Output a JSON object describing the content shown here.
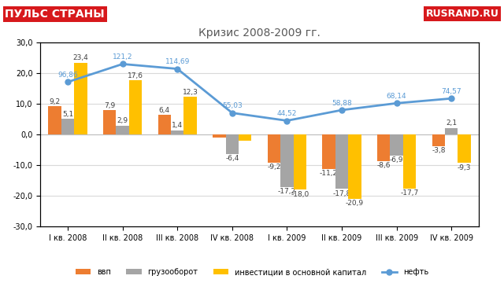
{
  "chart_data": {
    "type": "bar",
    "title": "Кризис 2008-2009 гг.",
    "annotations": [
      "ПУЛЬС СТРАНЫ",
      "RUSRAND.RU"
    ],
    "categories": [
      "I кв. 2008",
      "II кв. 2008",
      "III кв. 2008",
      "IV кв. 2008",
      "I кв. 2009",
      "II кв. 2009",
      "III кв. 2009",
      "IV кв. 2009"
    ],
    "series": [
      {
        "name": "ввп",
        "type": "bar",
        "color": "#ed7d31",
        "values": [
          9.2,
          7.9,
          6.4,
          -1.0,
          -9.2,
          -11.2,
          -8.6,
          -3.8
        ],
        "value_labels": [
          "9,2",
          "7,9",
          "6,4",
          null,
          "-9,2",
          "-11,2",
          "-8,6",
          "-3,8"
        ]
      },
      {
        "name": "грузооборот",
        "type": "bar",
        "color": "#a5a5a5",
        "values": [
          5.1,
          2.9,
          1.4,
          -6.4,
          -17.2,
          -17.8,
          -6.9,
          2.1
        ],
        "value_labels": [
          "5,1",
          "2,9",
          "1,4",
          "-6,4",
          "-17,2",
          "-17,8",
          "-6,9",
          "2,1"
        ]
      },
      {
        "name": "инвестиции в основной капитал",
        "type": "bar",
        "color": "#ffc000",
        "values": [
          23.4,
          17.6,
          12.3,
          -2.0,
          -18.0,
          -20.9,
          -17.7,
          -9.3
        ],
        "value_labels": [
          "23,4",
          "17,6",
          "12,3",
          null,
          "-18,0",
          "-20,9",
          "-17,7",
          "-9,3"
        ]
      },
      {
        "name": "нефть",
        "type": "line",
        "axis": "y2",
        "color": "#5b9bd5",
        "marker": "o",
        "values": [
          96.86,
          121.2,
          114.69,
          55.03,
          44.52,
          58.88,
          68.14,
          74.57
        ],
        "value_labels": [
          "96,86",
          "121,2",
          "114,69",
          "55,03",
          "44,52",
          "58,88",
          "68,14",
          "74,57"
        ]
      }
    ],
    "ylim": [
      -30,
      30
    ],
    "yticks": [
      {
        "value": -30,
        "label": "-30,0"
      },
      {
        "value": -20,
        "label": "-20,0"
      },
      {
        "value": -10,
        "label": "-10,0"
      },
      {
        "value": 0,
        "label": "0,0"
      },
      {
        "value": 10,
        "label": "10,0"
      },
      {
        "value": 20,
        "label": "20,0"
      },
      {
        "value": 30,
        "label": "30,0"
      }
    ],
    "y2lim": [
      -98.6,
      150.4
    ],
    "y2ticks": [],
    "grid": true,
    "data_labels": true,
    "legend": "lower center"
  }
}
